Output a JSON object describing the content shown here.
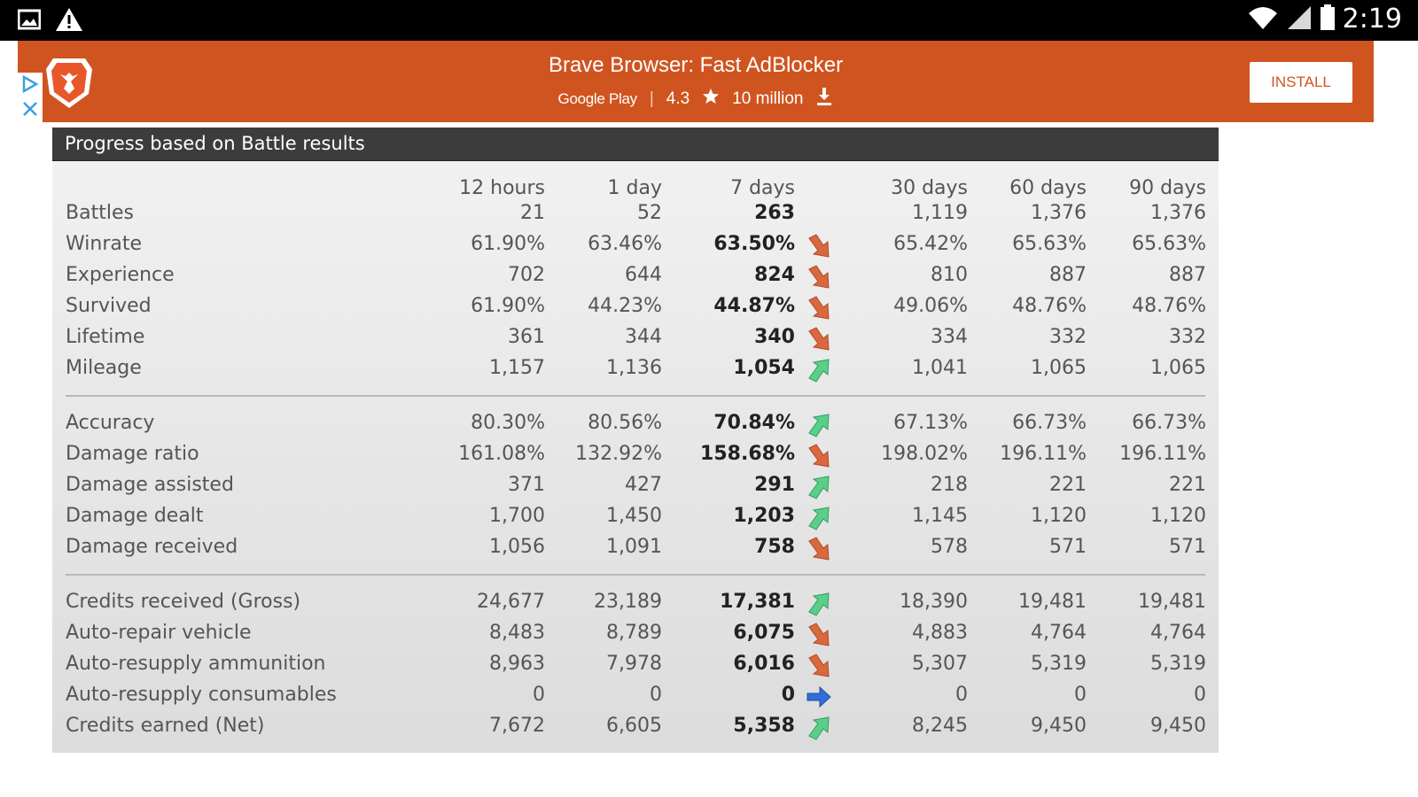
{
  "status_bar": {
    "time": "2:19",
    "icons": [
      "image-icon",
      "warning-icon",
      "wifi-icon",
      "signal-icon",
      "battery-icon"
    ]
  },
  "ad": {
    "title": "Brave Browser: Fast AdBlocker",
    "store": "Google Play",
    "rating": "4.3",
    "installs": "10 million",
    "install_label": "INSTALL",
    "colors": {
      "background": "#d05420",
      "button_text": "#d05420"
    }
  },
  "panel": {
    "title": "Progress based on Battle results",
    "columns": [
      "12 hours",
      "1 day",
      "7 days",
      "30 days",
      "60 days",
      "90 days"
    ],
    "groups": [
      [
        {
          "label": "Battles",
          "values": [
            "21",
            "52",
            "263",
            "1,119",
            "1,376",
            "1,376"
          ],
          "trend": "none"
        },
        {
          "label": "Winrate",
          "values": [
            "61.90%",
            "63.46%",
            "63.50%",
            "65.42%",
            "65.63%",
            "65.63%"
          ],
          "trend": "down"
        },
        {
          "label": "Experience",
          "values": [
            "702",
            "644",
            "824",
            "810",
            "887",
            "887"
          ],
          "trend": "down"
        },
        {
          "label": "Survived",
          "values": [
            "61.90%",
            "44.23%",
            "44.87%",
            "49.06%",
            "48.76%",
            "48.76%"
          ],
          "trend": "down"
        },
        {
          "label": "Lifetime",
          "values": [
            "361",
            "344",
            "340",
            "334",
            "332",
            "332"
          ],
          "trend": "down"
        },
        {
          "label": "Mileage",
          "values": [
            "1,157",
            "1,136",
            "1,054",
            "1,041",
            "1,065",
            "1,065"
          ],
          "trend": "up"
        }
      ],
      [
        {
          "label": "Accuracy",
          "values": [
            "80.30%",
            "80.56%",
            "70.84%",
            "67.13%",
            "66.73%",
            "66.73%"
          ],
          "trend": "up"
        },
        {
          "label": "Damage ratio",
          "values": [
            "161.08%",
            "132.92%",
            "158.68%",
            "198.02%",
            "196.11%",
            "196.11%"
          ],
          "trend": "down"
        },
        {
          "label": "Damage assisted",
          "values": [
            "371",
            "427",
            "291",
            "218",
            "221",
            "221"
          ],
          "trend": "up"
        },
        {
          "label": "Damage dealt",
          "values": [
            "1,700",
            "1,450",
            "1,203",
            "1,145",
            "1,120",
            "1,120"
          ],
          "trend": "up"
        },
        {
          "label": "Damage received",
          "values": [
            "1,056",
            "1,091",
            "758",
            "578",
            "571",
            "571"
          ],
          "trend": "down"
        }
      ],
      [
        {
          "label": "Credits received (Gross)",
          "values": [
            "24,677",
            "23,189",
            "17,381",
            "18,390",
            "19,481",
            "19,481"
          ],
          "trend": "up"
        },
        {
          "label": "Auto-repair vehicle",
          "values": [
            "8,483",
            "8,789",
            "6,075",
            "4,883",
            "4,764",
            "4,764"
          ],
          "trend": "down"
        },
        {
          "label": "Auto-resupply ammunition",
          "values": [
            "8,963",
            "7,978",
            "6,016",
            "5,307",
            "5,319",
            "5,319"
          ],
          "trend": "down"
        },
        {
          "label": "Auto-resupply consumables",
          "values": [
            "0",
            "0",
            "0",
            "0",
            "0",
            "0"
          ],
          "trend": "flat"
        },
        {
          "label": "Credits earned (Net)",
          "values": [
            "7,672",
            "6,605",
            "5,358",
            "8,245",
            "9,450",
            "9,450"
          ],
          "trend": "up"
        }
      ]
    ],
    "colors": {
      "header": "#3c3c3c",
      "arrow_down": "#d9683f",
      "arrow_up": "#5bcf8a",
      "arrow_flat": "#2f6fd6"
    }
  }
}
